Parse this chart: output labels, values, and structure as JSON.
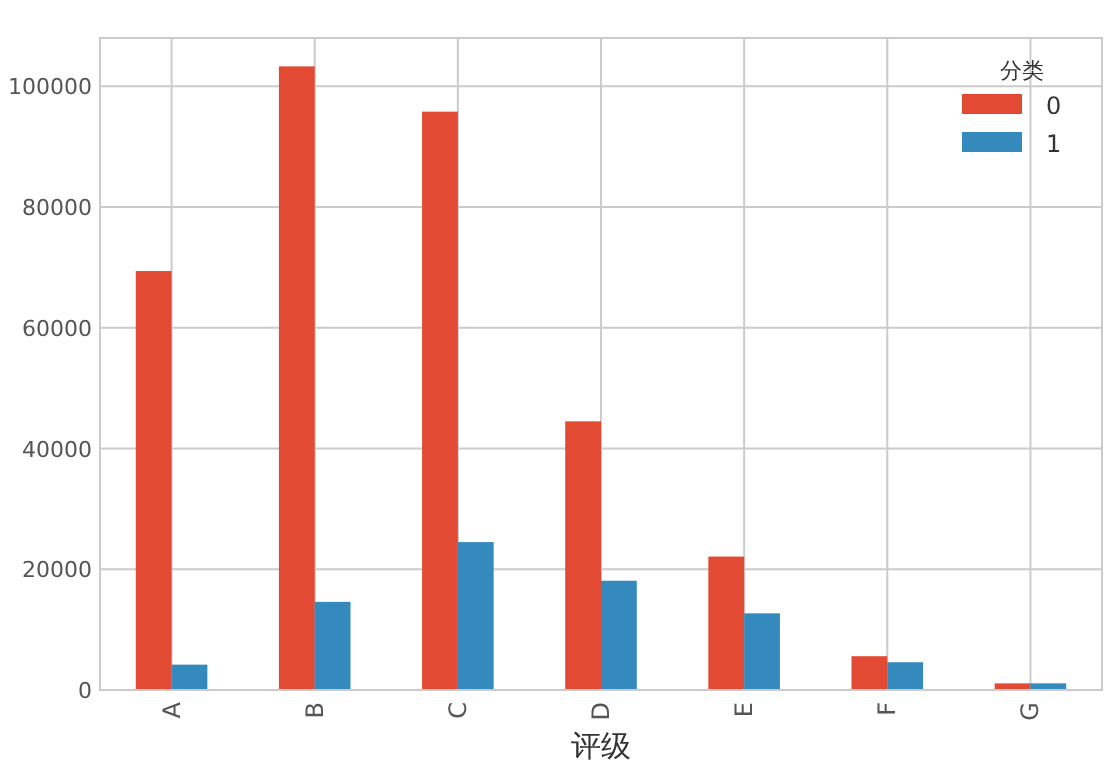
{
  "chart_data": {
    "type": "bar",
    "xlabel": "评级",
    "legend_title": "分类",
    "categories": [
      "A",
      "B",
      "C",
      "D",
      "E",
      "F",
      "G"
    ],
    "series": [
      {
        "name": "0",
        "color": "#e24a33",
        "values": [
          69400,
          103300,
          95800,
          44500,
          22100,
          5600,
          1100
        ]
      },
      {
        "name": "1",
        "color": "#348abd",
        "values": [
          4200,
          14600,
          24500,
          18100,
          12700,
          4600,
          1100
        ]
      }
    ],
    "ylim": [
      0,
      108000
    ],
    "yticks": [
      0,
      20000,
      40000,
      60000,
      80000,
      100000
    ],
    "grid": true,
    "legend": "top right"
  }
}
